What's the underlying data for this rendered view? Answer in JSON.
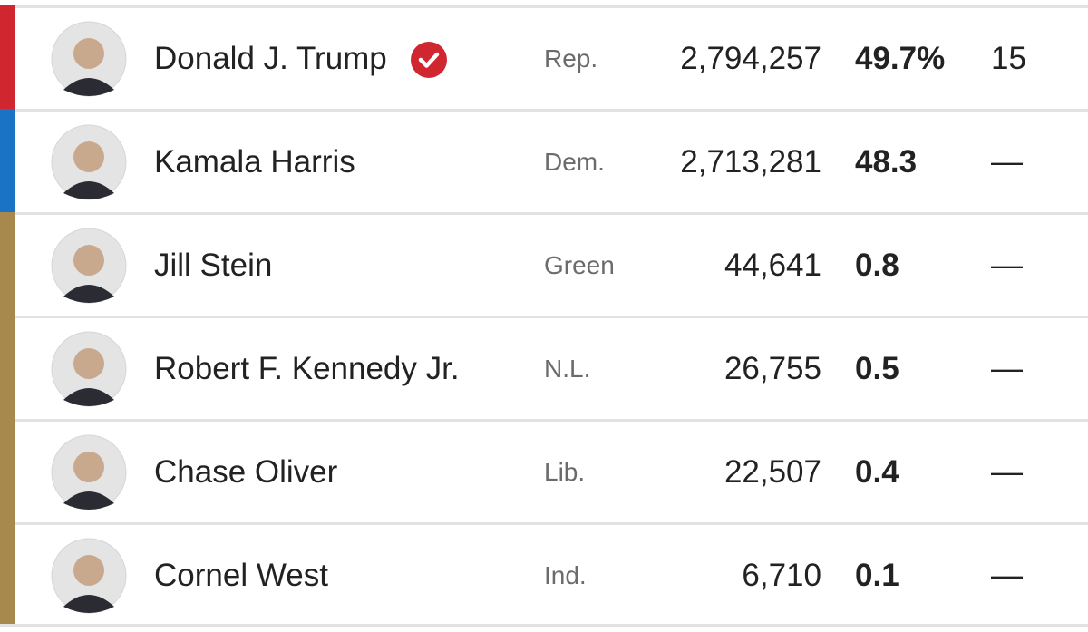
{
  "table": {
    "rows": [
      {
        "name": "Donald J. Trump",
        "party": "Rep.",
        "votes": "2,794,257",
        "pct": "49.7%",
        "electoral": "15",
        "color": "#d0262f",
        "winner": true
      },
      {
        "name": "Kamala Harris",
        "party": "Dem.",
        "votes": "2,713,281",
        "pct": "48.3",
        "electoral": "—",
        "color": "#1a73c4",
        "winner": false
      },
      {
        "name": "Jill Stein",
        "party": "Green",
        "votes": "44,641",
        "pct": "0.8",
        "electoral": "—",
        "color": "#a8894d",
        "winner": false
      },
      {
        "name": "Robert F. Kennedy Jr.",
        "party": "N.L.",
        "votes": "26,755",
        "pct": "0.5",
        "electoral": "—",
        "color": "#a8894d",
        "winner": false
      },
      {
        "name": "Chase Oliver",
        "party": "Lib.",
        "votes": "22,507",
        "pct": "0.4",
        "electoral": "—",
        "color": "#a8894d",
        "winner": false
      },
      {
        "name": "Cornel West",
        "party": "Ind.",
        "votes": "6,710",
        "pct": "0.1",
        "electoral": "—",
        "color": "#a8894d",
        "winner": false
      }
    ]
  }
}
